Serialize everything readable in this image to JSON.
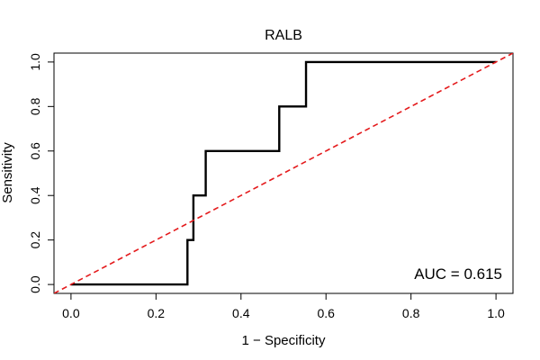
{
  "chart_data": {
    "type": "line",
    "title": "RALB",
    "xlabel": "1 − Specificity",
    "ylabel": "Sensitivity",
    "xlim": [
      -0.04,
      1.04
    ],
    "ylim": [
      -0.04,
      1.04
    ],
    "x_ticks": [
      0.0,
      0.2,
      0.4,
      0.6,
      0.8,
      1.0
    ],
    "x_tick_labels": [
      "0.0",
      "0.2",
      "0.4",
      "0.6",
      "0.8",
      "1.0"
    ],
    "y_ticks": [
      0.0,
      0.2,
      0.4,
      0.6,
      0.8,
      1.0
    ],
    "y_tick_labels": [
      "0.0",
      "0.2",
      "0.4",
      "0.6",
      "0.8",
      "1.0"
    ],
    "grid": false,
    "series": [
      {
        "color": "#000000",
        "style": "solid",
        "x": [
          0.0,
          0.274,
          0.274,
          0.288,
          0.288,
          0.31,
          0.31,
          0.317,
          0.317,
          0.49,
          0.49,
          0.553,
          0.553,
          1.0
        ],
        "y": [
          0.0,
          0.0,
          0.2,
          0.2,
          0.4,
          0.4,
          0.4,
          0.4,
          0.6,
          0.6,
          0.8,
          0.8,
          1.0,
          1.0
        ]
      },
      {
        "color": "#e41a1c",
        "style": "dashed",
        "x": [
          -0.04,
          1.04
        ],
        "y": [
          -0.04,
          1.04
        ]
      }
    ],
    "annotation": "AUC = 0.615"
  }
}
